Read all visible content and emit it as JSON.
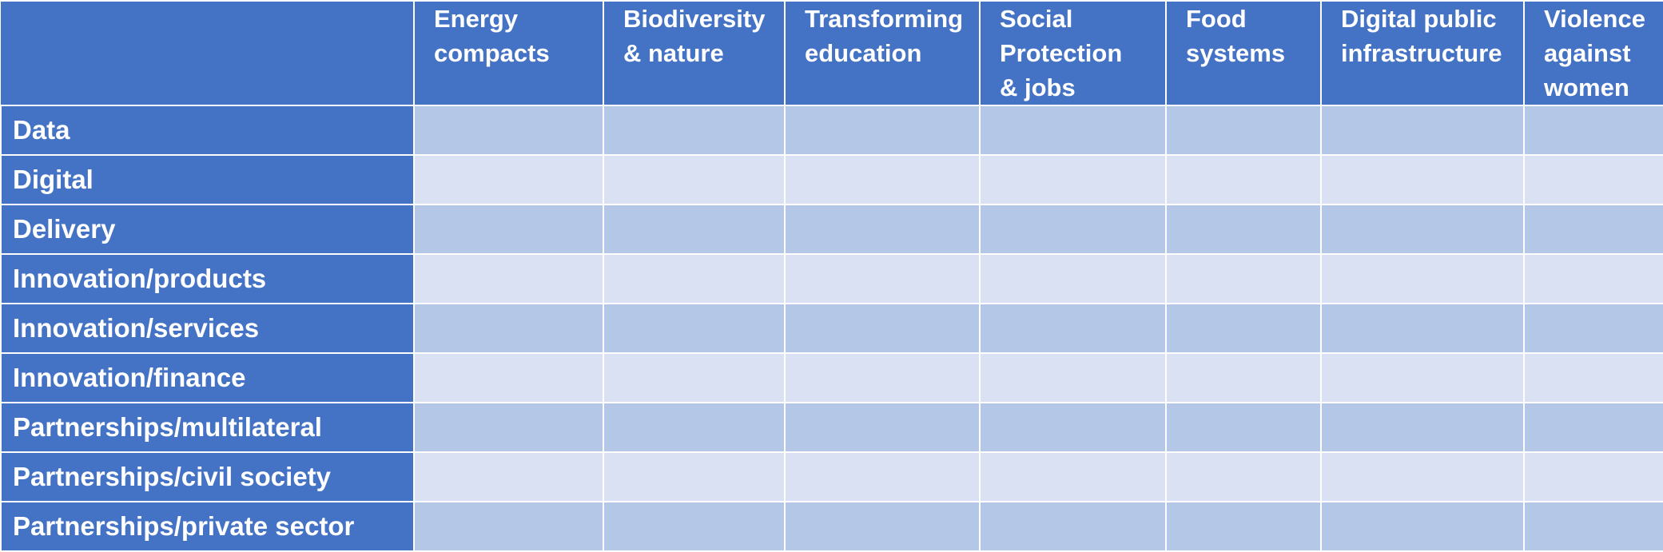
{
  "table": {
    "columns": [
      "Energy\ncompacts",
      "Biodiversity\n& nature",
      "Transforming\neducation",
      "Social\nProtection\n& jobs",
      "Food\nsystems",
      "Digital public\ninfrastructure",
      "Violence\nagainst\nwomen"
    ],
    "rows": [
      "Data",
      "Digital",
      "Delivery",
      "Innovation/products",
      "Innovation/services",
      "Innovation/finance",
      "Partnerships/multilateral",
      "Partnerships/civil society",
      "Partnerships/private sector"
    ]
  },
  "colors": {
    "header_bg": "#4472C4",
    "band_dark": "#B4C7E7",
    "band_light": "#D9E1F2",
    "grid_line": "#FFFFFF"
  }
}
